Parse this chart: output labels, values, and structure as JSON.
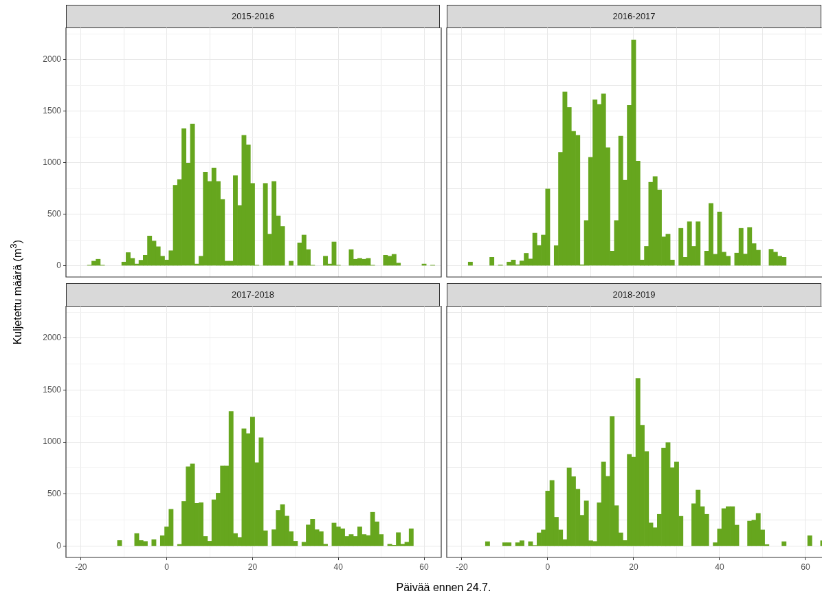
{
  "chart_data": [
    {
      "type": "bar",
      "title": "2015-2016",
      "ylabel": "Kuljetettu määrä (m$^{3}$)",
      "color": "#66a61e",
      "grid": true,
      "tick_labels": "y",
      "x": [
        -18,
        -17,
        -16,
        -15,
        -14,
        -13,
        -12,
        -11,
        -10,
        -9,
        -8,
        -7,
        -6,
        -5,
        -4,
        -3,
        -2,
        -1,
        0,
        1,
        2,
        3,
        4,
        5,
        6,
        7,
        8,
        9,
        10,
        11,
        12,
        13,
        14,
        15,
        16,
        17,
        18,
        19,
        20,
        21,
        22,
        23,
        24,
        25,
        26,
        27,
        28,
        29,
        30,
        31,
        32,
        33,
        34,
        35,
        36,
        37,
        38,
        39,
        40,
        41,
        42,
        43,
        44,
        45,
        46,
        47,
        48,
        49,
        50,
        51,
        52,
        53,
        54,
        55,
        56,
        57,
        58,
        59,
        60,
        61,
        62
      ],
      "values": [
        5,
        44,
        62,
        5,
        null,
        null,
        null,
        null,
        35,
        127,
        71,
        16,
        53,
        101,
        288,
        239,
        184,
        92,
        55,
        145,
        780,
        835,
        1329,
        994,
        1375,
        16,
        92,
        908,
        817,
        948,
        817,
        642,
        44,
        44,
        872,
        584,
        1265,
        1171,
        798,
        5,
        null,
        798,
        306,
        817,
        483,
        380,
        null,
        44,
        null,
        221,
        297,
        156,
        5,
        null,
        null,
        92,
        16,
        230,
        5,
        null,
        null,
        156,
        62,
        71,
        62,
        71,
        5,
        null,
        null,
        101,
        92,
        110,
        25,
        null,
        null,
        null,
        null,
        null,
        16,
        null,
        5
      ],
      "xlim": [
        -23.5,
        64
      ],
      "xticks": [
        {
          "value": -20,
          "label": null
        },
        {
          "value": -10,
          "label": null
        },
        {
          "value": 0,
          "label": null
        },
        {
          "value": 10,
          "label": null
        },
        {
          "value": 20,
          "label": null
        },
        {
          "value": 30,
          "label": null
        },
        {
          "value": 40,
          "label": null
        },
        {
          "value": 50,
          "label": null
        },
        {
          "value": 60,
          "label": null
        }
      ],
      "ylim": [
        -110,
        2310
      ],
      "yticks": [
        0,
        {
          "value": 250,
          "label": null
        },
        500,
        {
          "value": 750,
          "label": null
        },
        1000,
        {
          "value": 1250,
          "label": null
        },
        1500,
        {
          "value": 1750,
          "label": null
        },
        2000,
        {
          "value": 2250,
          "label": null
        }
      ]
    },
    {
      "type": "bar",
      "title": "2016-2017",
      "color": "#66a61e",
      "grid": true,
      "tick_labels": false,
      "x": [
        -18,
        -17,
        -16,
        -15,
        -14,
        -13,
        -12,
        -11,
        -10,
        -9,
        -8,
        -7,
        -6,
        -5,
        -4,
        -3,
        -2,
        -1,
        0,
        1,
        2,
        3,
        4,
        5,
        6,
        7,
        8,
        9,
        10,
        11,
        12,
        13,
        14,
        15,
        16,
        17,
        18,
        19,
        20,
        21,
        22,
        23,
        24,
        25,
        26,
        27,
        28,
        29,
        30,
        31,
        32,
        33,
        34,
        35,
        36,
        37,
        38,
        39,
        40,
        41,
        42,
        43,
        44,
        45,
        46,
        47,
        48,
        49,
        50,
        51,
        52,
        53,
        54,
        55
      ],
      "values": [
        35,
        null,
        null,
        null,
        null,
        81,
        null,
        7,
        null,
        35,
        55,
        9,
        46,
        120,
        65,
        316,
        196,
        297,
        744,
        null,
        194,
        1099,
        1684,
        1534,
        1302,
        1265,
        9,
        438,
        1051,
        1610,
        1564,
        1666,
        1145,
        141,
        438,
        1256,
        829,
        1555,
        2189,
        1014,
        55,
        187,
        809,
        864,
        735,
        279,
        306,
        55,
        null,
        362,
        81,
        426,
        187,
        426,
        null,
        141,
        604,
        111,
        521,
        131,
        92,
        null,
        122,
        362,
        113,
        371,
        214,
        150,
        null,
        null,
        159,
        131,
        92,
        81
      ],
      "xlim": [
        -23.5,
        64
      ],
      "xticks": [
        {
          "value": -20,
          "label": null
        },
        {
          "value": -10,
          "label": null
        },
        {
          "value": 0,
          "label": null
        },
        {
          "value": 10,
          "label": null
        },
        {
          "value": 20,
          "label": null
        },
        {
          "value": 30,
          "label": null
        },
        {
          "value": 40,
          "label": null
        },
        {
          "value": 50,
          "label": null
        },
        {
          "value": 60,
          "label": null
        }
      ],
      "ylim": [
        -110,
        2310
      ],
      "yticks": [
        {
          "value": 0,
          "label": null
        },
        {
          "value": 250,
          "label": null
        },
        {
          "value": 500,
          "label": null
        },
        {
          "value": 750,
          "label": null
        },
        {
          "value": 1000,
          "label": null
        },
        {
          "value": 1250,
          "label": null
        },
        {
          "value": 1500,
          "label": null
        },
        {
          "value": 1750,
          "label": null
        },
        {
          "value": 2000,
          "label": null
        },
        {
          "value": 2250,
          "label": null
        }
      ]
    },
    {
      "type": "bar",
      "title": "2017-2018",
      "xlabel": "Päivää ennen 24.7.",
      "color": "#66a61e",
      "grid": true,
      "x": [
        -11,
        -10,
        -9,
        -8,
        -7,
        -6,
        -5,
        -4,
        -3,
        -2,
        -1,
        0,
        1,
        2,
        3,
        4,
        5,
        6,
        7,
        8,
        9,
        10,
        11,
        12,
        13,
        14,
        15,
        16,
        17,
        18,
        19,
        20,
        21,
        22,
        23,
        24,
        25,
        26,
        27,
        28,
        29,
        30,
        31,
        32,
        33,
        34,
        35,
        36,
        37,
        38,
        39,
        40,
        41,
        42,
        43,
        44,
        45,
        46,
        47,
        48,
        49,
        50,
        51,
        52,
        53,
        54,
        55,
        56,
        57
      ],
      "values": [
        53,
        null,
        null,
        null,
        120,
        53,
        44,
        null,
        62,
        null,
        99,
        184,
        353,
        null,
        16,
        429,
        763,
        790,
        410,
        417,
        92,
        46,
        445,
        509,
        770,
        770,
        1295,
        120,
        83,
        1127,
        1081,
        1240,
        802,
        1041,
        147,
        null,
        157,
        343,
        399,
        288,
        138,
        46,
        null,
        37,
        203,
        258,
        157,
        138,
        18,
        null,
        221,
        184,
        166,
        92,
        111,
        92,
        184,
        111,
        101,
        325,
        233,
        111,
        null,
        18,
        7,
        129,
        18,
        37,
        166
      ],
      "xlim": [
        -23.5,
        64
      ],
      "xticks": [
        -20,
        {
          "value": -10,
          "label": null
        },
        0,
        {
          "value": 10,
          "label": null
        },
        20,
        {
          "value": 30,
          "label": null
        },
        40,
        {
          "value": 50,
          "label": null
        },
        60
      ],
      "ylim": [
        -110,
        2310
      ],
      "yticks": [
        0,
        {
          "value": 250,
          "label": null
        },
        500,
        {
          "value": 750,
          "label": null
        },
        1000,
        {
          "value": 1250,
          "label": null
        },
        1500,
        {
          "value": 1750,
          "label": null
        },
        2000,
        {
          "value": 2250,
          "label": null
        }
      ]
    },
    {
      "type": "bar",
      "title": "2018-2019",
      "color": "#66a61e",
      "grid": true,
      "tick_labels": "x",
      "x": [
        -14,
        -13,
        -12,
        -11,
        -10,
        -9,
        -8,
        -7,
        -6,
        -5,
        -4,
        -3,
        -2,
        -1,
        0,
        1,
        2,
        3,
        4,
        5,
        6,
        7,
        8,
        9,
        10,
        11,
        12,
        13,
        14,
        15,
        16,
        17,
        18,
        19,
        20,
        21,
        22,
        23,
        24,
        25,
        26,
        27,
        28,
        29,
        30,
        31,
        32,
        33,
        34,
        35,
        36,
        37,
        38,
        39,
        40,
        41,
        42,
        43,
        44,
        45,
        46,
        47,
        48,
        49,
        50,
        51,
        52,
        53,
        54,
        55,
        56,
        57,
        58,
        59,
        60,
        61,
        62,
        63,
        64
      ],
      "values": [
        42,
        null,
        null,
        null,
        32,
        32,
        null,
        32,
        51,
        null,
        42,
        5,
        127,
        155,
        529,
        631,
        277,
        155,
        62,
        751,
        667,
        547,
        296,
        434,
        51,
        44,
        416,
        809,
        670,
        1247,
        388,
        127,
        53,
        882,
        855,
        1612,
        1162,
        910,
        222,
        176,
        305,
        940,
        996,
        753,
        809,
        286,
        null,
        null,
        407,
        538,
        379,
        305,
        null,
        32,
        164,
        360,
        379,
        379,
        201,
        null,
        null,
        240,
        249,
        314,
        155,
        14,
        null,
        null,
        null,
        42,
        null,
        null,
        null,
        null,
        null,
        99,
        null,
        null,
        51
      ],
      "xlim": [
        -23.5,
        64
      ],
      "xticks": [
        -20,
        {
          "value": -10,
          "label": null
        },
        0,
        {
          "value": 10,
          "label": null
        },
        20,
        {
          "value": 30,
          "label": null
        },
        40,
        {
          "value": 50,
          "label": null
        },
        60
      ],
      "ylim": [
        -110,
        2310
      ],
      "yticks": [
        {
          "value": 0,
          "label": null
        },
        {
          "value": 250,
          "label": null
        },
        {
          "value": 500,
          "label": null
        },
        {
          "value": 750,
          "label": null
        },
        {
          "value": 1000,
          "label": null
        },
        {
          "value": 1250,
          "label": null
        },
        {
          "value": 1500,
          "label": null
        },
        {
          "value": 1750,
          "label": null
        },
        {
          "value": 2000,
          "label": null
        },
        {
          "value": 2250,
          "label": null
        }
      ]
    }
  ]
}
